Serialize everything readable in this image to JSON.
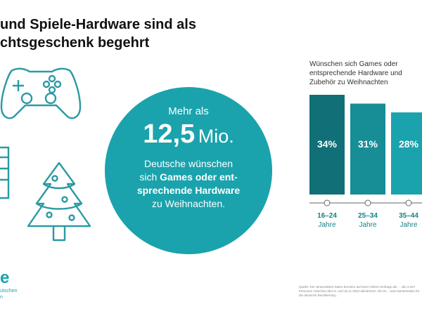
{
  "title": {
    "line1": "und Spiele-Hardware sind als",
    "line2": "chtsgeschenk begehrt"
  },
  "circle": {
    "pre": "Mehr als",
    "number": "12,5",
    "unit": "Mio.",
    "desc_1": "Deutsche wünschen",
    "desc_2a": "sich ",
    "desc_2b": "Games oder ent-",
    "desc_3": "sprechende Hardware",
    "desc_4": "zu Weihnachten."
  },
  "icons": [
    "gamepad-icon",
    "gift-box-icon",
    "christmas-tree-icon"
  ],
  "colors": {
    "accent": "#1aa3ad",
    "bar_dark": "#106f77",
    "bar_mid": "#178d96",
    "bar_light": "#1aa3ad",
    "icon_stroke": "#2a9aa3"
  },
  "chart_data": {
    "type": "bar",
    "title_lines": [
      "Wünschen sich Games oder",
      "entsprechende Hardware und",
      "Zubehör zu Weihnachten"
    ],
    "categories": [
      "16–24",
      "25–34",
      "35–44"
    ],
    "category_sub": [
      "Jahre",
      "Jahre",
      "Jahre"
    ],
    "values": [
      34,
      31,
      28
    ],
    "value_labels": [
      "34%",
      "31%",
      "28%"
    ],
    "unit": "%",
    "ylim": [
      0,
      34
    ],
    "grid": false,
    "legend": "none"
  },
  "brand": {
    "mark": "e",
    "sub_1": "utschen",
    "sub_2": "n"
  },
  "source": "Quelle: Die verwendeten Daten beruhen auf einer Online-Umfrage der ... der 2.037 Personen zwischen dem 8. und 15.11.2022 teilnahmen. Die Er... sind repräsentativ für die deutsche Bevölkerung..."
}
